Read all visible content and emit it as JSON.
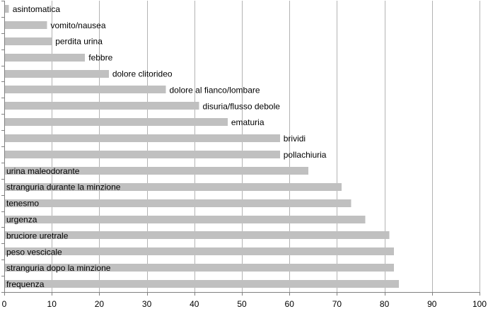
{
  "chart_data": {
    "type": "bar",
    "orientation": "horizontal",
    "title": "",
    "xlabel": "",
    "ylabel": "",
    "xlim": [
      0,
      100
    ],
    "x_ticks": [
      0,
      10,
      20,
      30,
      40,
      50,
      60,
      70,
      80,
      90,
      100
    ],
    "grid": "vertical-major",
    "legend": "none",
    "bar_color": "#c0c0c0",
    "grid_color": "#b3b3b3",
    "categories": [
      "asintomatica",
      "vomito/nausea",
      "perdita urina",
      "febbre",
      "dolore clitorideo",
      "dolore al fianco/lombare",
      "disuria/flusso debole",
      "ematuria",
      "brividi",
      "pollachiuria",
      "urina maleodorante",
      "stranguria durante la minzione",
      "tenesmo",
      "urgenza",
      "bruciore uretrale",
      "peso vescicale",
      "stranguria dopo la minzione",
      "frequenza"
    ],
    "values": [
      1,
      9,
      10,
      17,
      22,
      34,
      41,
      47,
      58,
      58,
      64,
      71,
      73,
      76,
      81,
      82,
      82,
      83
    ]
  }
}
